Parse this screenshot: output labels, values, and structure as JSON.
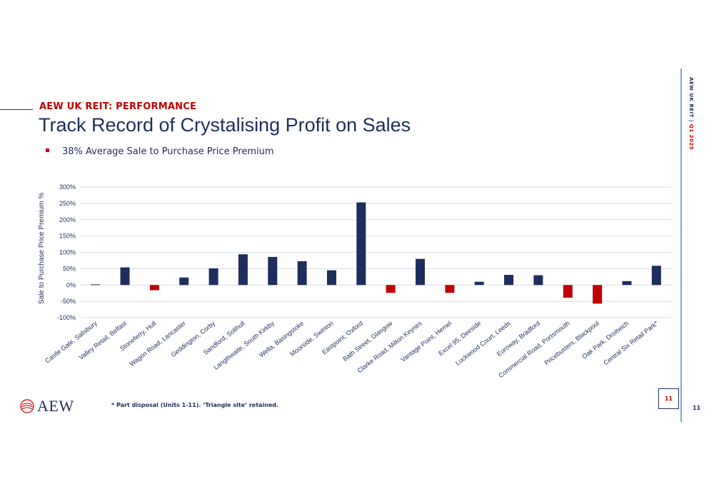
{
  "header": {
    "section_label": "AEW UK REIT: PERFORMANCE",
    "title": "Track Record of Crystalising Profit on Sales",
    "bullet": "38% Average Sale to Purchase Price Premium"
  },
  "colors": {
    "positive": "#1f2d5c",
    "negative": "#c00000",
    "accent": "#c00000",
    "navy": "#1f2d5c",
    "side_rule": "#7aa6d8"
  },
  "logo": {
    "text": "AEW",
    "icon": "aew-logo-mark-icon"
  },
  "footnote": "* Part disposal (Units 1-11). ‘Triangle site’ retained.",
  "page_box": "11",
  "page_number": "11",
  "side_label": {
    "brand": "AEW UK REIT",
    "separator": "|",
    "period": "Q1 2025"
  },
  "chart_data": {
    "type": "bar",
    "ylabel": "Sale to Purchase Price Premium %",
    "ylim": [
      -100,
      300
    ],
    "yticks": [
      -100,
      -50,
      0,
      50,
      100,
      150,
      200,
      250,
      300
    ],
    "ytick_labels": [
      "-100%",
      "-50%",
      "0%",
      "50%",
      "100%",
      "150%",
      "200%",
      "250%",
      "300%"
    ],
    "grid": true,
    "categories": [
      "Castle Gate, Salisbury",
      "Valley Retail, Belfast",
      "Stoneferry, Hull",
      "Wagon Road, Lancaster",
      "Geddington, Corby",
      "Sandford, Solihull",
      "Langthwaite, South Kirkby",
      "Wella, Basingstoke",
      "Moorside, Swinton",
      "Eastpoint, Oxford",
      "Bath Street, Glasgow",
      "Clarke Road, Milton Keynes",
      "Vantage Point, Hemel",
      "Excel 95, Deeside",
      "Lockwood Court, Leeds",
      "Euroway, Bradford",
      "Commercial Road, Portsmouth",
      "Pricebusters, Blackpool",
      "Oak Park, Droitwich",
      "Central Six Retail Park*"
    ],
    "values": [
      2,
      54,
      -16,
      23,
      51,
      94,
      86,
      73,
      45,
      253,
      -24,
      80,
      -24,
      10,
      31,
      30,
      -39,
      -57,
      12,
      59
    ]
  }
}
